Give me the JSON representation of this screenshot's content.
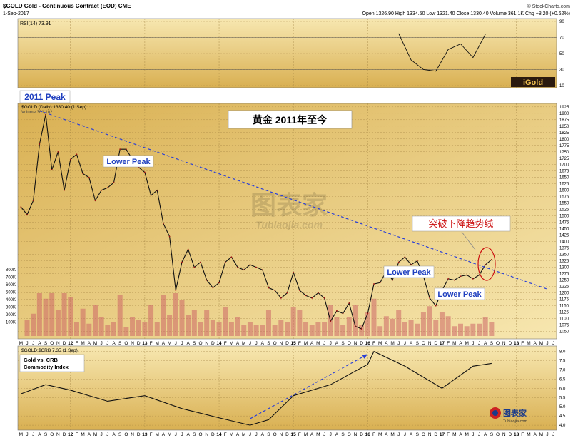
{
  "header": {
    "symbol_line": "$GOLD Gold - Continuous Contract (EOD) CME",
    "date": "1-Sep-2017",
    "credit": "© StockCharts.com",
    "ohlc": "Open 1326.90  High 1334.50  Low 1321.40  Close 1330.40  Volume 361.1K  Chg +8.20 (+0.62%)"
  },
  "colors": {
    "panel_top": "#f7e7b0",
    "panel_bottom": "#d9b052",
    "trendline": "#2a3fd6",
    "callout_text": "#1f3fbf",
    "red_text": "#cc1111",
    "price_line": "#111111",
    "volume_bar": "#cc6666"
  },
  "chart_data": [
    {
      "type": "line",
      "panel": "RSI",
      "legend": "RSI(14) 73.91",
      "levels": [
        70,
        30
      ],
      "ylim": [
        10,
        90
      ],
      "yticks": [
        "90",
        "70",
        "50",
        "30",
        "10"
      ],
      "x": [
        "2016-Jun",
        "2016-Aug",
        "2016-Oct",
        "2016-Dec",
        "2017-Feb",
        "2017-Apr",
        "2017-Jun",
        "2017-Aug"
      ],
      "values": [
        75,
        42,
        30,
        28,
        55,
        62,
        45,
        74
      ],
      "badge": "iGold"
    },
    {
      "type": "line",
      "panel": "Price",
      "title": "黄金 2011年至今",
      "legend": "$GOLD (Daily) 1330.40 (1 Sep)",
      "volume_legend": "Volume 361,102",
      "ylim": [
        1035,
        1930
      ],
      "yticks": [
        "1925",
        "1900",
        "1875",
        "1850",
        "1825",
        "1800",
        "1775",
        "1750",
        "1725",
        "1700",
        "1675",
        "1650",
        "1625",
        "1600",
        "1575",
        "1550",
        "1525",
        "1500",
        "1475",
        "1450",
        "1425",
        "1400",
        "1375",
        "1350",
        "1325",
        "1300",
        "1275",
        "1250",
        "1225",
        "1200",
        "1175",
        "1150",
        "1125",
        "1100",
        "1075",
        "1050"
      ],
      "volume_ticks": [
        "800K",
        "700K",
        "600K",
        "500K",
        "400K",
        "300K",
        "200K",
        "100K"
      ],
      "series": [
        {
          "x": [
            "2011-May",
            "2011-Jun",
            "2011-Jul",
            "2011-Aug",
            "2011-Sep",
            "2011-Oct",
            "2011-Nov",
            "2011-Dec",
            "2012-Jan",
            "2012-Feb",
            "2012-Mar",
            "2012-Apr",
            "2012-May",
            "2012-Jun",
            "2012-Jul",
            "2012-Aug",
            "2012-Sep",
            "2012-Oct",
            "2012-Nov",
            "2012-Dec",
            "2013-Jan",
            "2013-Feb",
            "2013-Mar",
            "2013-Apr",
            "2013-May",
            "2013-Jun",
            "2013-Jul",
            "2013-Aug",
            "2013-Sep",
            "2013-Oct",
            "2013-Nov",
            "2013-Dec",
            "2014-Jan",
            "2014-Feb",
            "2014-Mar",
            "2014-Apr",
            "2014-May",
            "2014-Jun",
            "2014-Jul",
            "2014-Aug",
            "2014-Sep",
            "2014-Oct",
            "2014-Nov",
            "2014-Dec",
            "2015-Jan",
            "2015-Feb",
            "2015-Mar",
            "2015-Apr",
            "2015-May",
            "2015-Jun",
            "2015-Jul",
            "2015-Aug",
            "2015-Sep",
            "2015-Oct",
            "2015-Nov",
            "2015-Dec",
            "2016-Jan",
            "2016-Feb",
            "2016-Mar",
            "2016-Apr",
            "2016-May",
            "2016-Jun",
            "2016-Jul",
            "2016-Aug",
            "2016-Sep",
            "2016-Oct",
            "2016-Nov",
            "2016-Dec",
            "2017-Jan",
            "2017-Feb",
            "2017-Mar",
            "2017-Apr",
            "2017-May",
            "2017-Jun",
            "2017-Jul",
            "2017-Aug",
            "2017-Sep"
          ],
          "values": [
            1535,
            1505,
            1560,
            1780,
            1895,
            1680,
            1750,
            1600,
            1720,
            1740,
            1665,
            1650,
            1560,
            1600,
            1610,
            1630,
            1760,
            1760,
            1720,
            1690,
            1670,
            1580,
            1600,
            1470,
            1420,
            1210,
            1320,
            1370,
            1300,
            1320,
            1250,
            1220,
            1240,
            1320,
            1340,
            1300,
            1290,
            1310,
            1300,
            1290,
            1220,
            1210,
            1180,
            1200,
            1280,
            1210,
            1190,
            1180,
            1200,
            1180,
            1090,
            1130,
            1120,
            1160,
            1070,
            1060,
            1120,
            1235,
            1240,
            1285,
            1250,
            1320,
            1340,
            1310,
            1325,
            1265,
            1180,
            1150,
            1210,
            1255,
            1250,
            1265,
            1270,
            1255,
            1270,
            1310,
            1330
          ]
        }
      ],
      "trendline": {
        "from": {
          "x": "2011-Aug",
          "y": 1910
        },
        "to": {
          "x": "2018-Jun",
          "y": 1215
        }
      },
      "annotations": [
        {
          "text": "2011 Peak"
        },
        {
          "text": "Lower Peak"
        },
        {
          "text": "Lower Peak"
        },
        {
          "text": "Lower Peak"
        },
        {
          "text": "突破下降趋势线"
        }
      ],
      "watermark": {
        "text": "图表家",
        "subtext": "Tubiaojia.com"
      }
    },
    {
      "type": "line",
      "panel": "Ratio",
      "legend": "$GOLD:$CRB 7.35 (1 Sep)",
      "label": "Gold vs. CRB\nCommodity Index",
      "ylim": [
        3.85,
        8.1
      ],
      "yticks": [
        "8.0",
        "7.5",
        "7.0",
        "6.5",
        "6.0",
        "5.5",
        "5.0",
        "4.5",
        "4.0"
      ],
      "x": [
        "2011-May",
        "2011-Sep",
        "2012-Jan",
        "2012-Jul",
        "2013-Jan",
        "2013-Jul",
        "2014-Jan",
        "2014-Jun",
        "2014-Sep",
        "2015-Jan",
        "2015-Jul",
        "2016-Jan",
        "2016-Feb",
        "2016-Jul",
        "2017-Jan",
        "2017-Jun",
        "2017-Sep"
      ],
      "values": [
        5.7,
        6.2,
        5.9,
        5.3,
        5.6,
        4.9,
        4.4,
        4.0,
        4.3,
        5.6,
        6.2,
        7.3,
        8.0,
        7.2,
        6.0,
        7.2,
        7.35
      ],
      "arrow": {
        "from": {
          "x": "2014-Jun",
          "y": 4.35
        },
        "to": {
          "x": "2016-Jan",
          "y": 7.85
        }
      }
    }
  ],
  "x_axis_labels": [
    "M",
    "J",
    "J",
    "A",
    "S",
    "O",
    "N",
    "D",
    "12",
    "F",
    "M",
    "A",
    "M",
    "J",
    "J",
    "A",
    "S",
    "O",
    "N",
    "D",
    "13",
    "F",
    "M",
    "A",
    "M",
    "J",
    "J",
    "A",
    "S",
    "O",
    "N",
    "D",
    "14",
    "F",
    "M",
    "A",
    "M",
    "J",
    "J",
    "A",
    "S",
    "O",
    "N",
    "D",
    "15",
    "F",
    "M",
    "A",
    "M",
    "J",
    "J",
    "A",
    "S",
    "O",
    "N",
    "D",
    "16",
    "F",
    "M",
    "A",
    "M",
    "J",
    "J",
    "A",
    "S",
    "O",
    "N",
    "D",
    "17",
    "F",
    "M",
    "A",
    "M",
    "J",
    "J",
    "A",
    "S",
    "O",
    "N",
    "D",
    "18",
    "F",
    "M",
    "A",
    "M",
    "J",
    "J"
  ],
  "logo": {
    "text": "图表家",
    "sub": "Tubiaojia.com"
  }
}
